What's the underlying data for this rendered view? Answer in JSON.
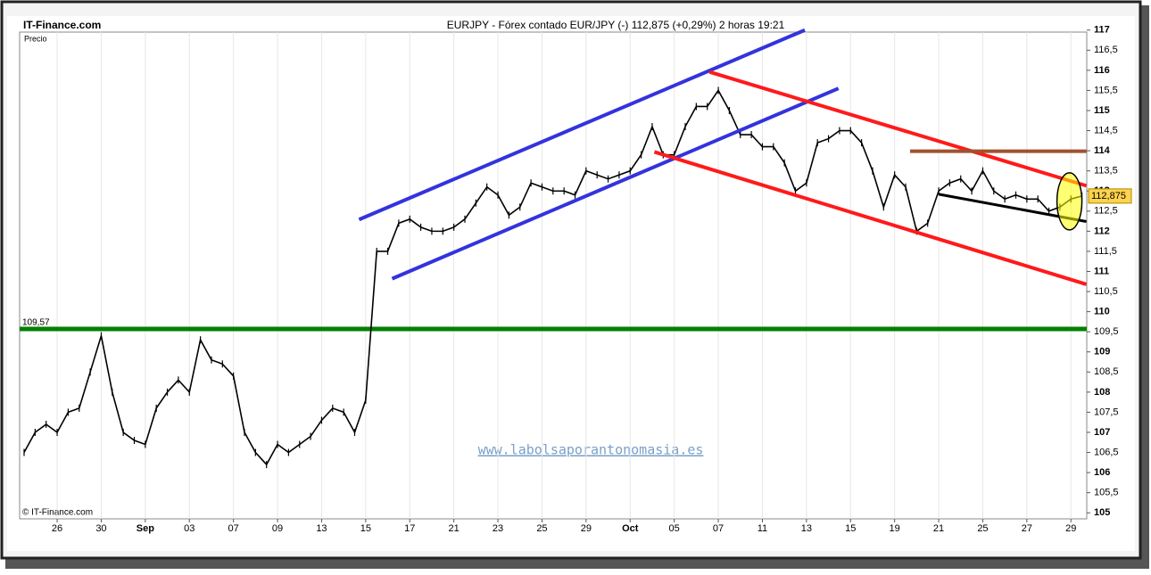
{
  "chart_data": {
    "type": "line",
    "brand": "IT-Finance.com",
    "title": "EURJPY - Fórex contado EUR/JPY (-)    112,875 (+0,29%)    2 horas   19:21",
    "ylabel": "Precio",
    "copyright": "© IT-Finance.com",
    "watermark": "www.labolsaporantonomasia.es",
    "categories": [
      null,
      null,
      null,
      "26",
      null,
      null,
      null,
      "30",
      null,
      null,
      null,
      "Sep",
      null,
      null,
      null,
      "03",
      null,
      null,
      null,
      "07",
      null,
      null,
      null,
      "09",
      null,
      null,
      null,
      "13",
      null,
      null,
      null,
      "15",
      null,
      null,
      null,
      "17",
      null,
      null,
      null,
      "21",
      null,
      null,
      null,
      "23",
      null,
      null,
      null,
      "25",
      null,
      null,
      null,
      "29",
      null,
      null,
      null,
      "Oct",
      null,
      null,
      null,
      "05",
      null,
      null,
      null,
      "07",
      null,
      null,
      null,
      "11",
      null,
      null,
      null,
      "13",
      null,
      null,
      null,
      "15",
      null,
      null,
      null,
      "19",
      null,
      null,
      null,
      "21",
      null,
      null,
      null,
      "25",
      null,
      null,
      null,
      "27",
      null,
      null,
      null,
      "29",
      null
    ],
    "series": [
      {
        "name": "EURJPY",
        "color": "#000000",
        "values": [
          106.5,
          107,
          107.2,
          107,
          107.5,
          107.6,
          108.5,
          109.4,
          108,
          107,
          106.8,
          106.7,
          107.6,
          108,
          108.3,
          108,
          109.3,
          108.8,
          108.7,
          108.4,
          107,
          106.5,
          106.2,
          106.7,
          106.5,
          106.7,
          106.9,
          107.3,
          107.6,
          107.5,
          107,
          107.8,
          111.5,
          111.5,
          112.2,
          112.3,
          112.1,
          112,
          112,
          112.1,
          112.3,
          112.7,
          113.1,
          112.9,
          112.4,
          112.6,
          113.2,
          113.1,
          113,
          113,
          112.9,
          113.5,
          113.4,
          113.3,
          113.4,
          113.5,
          113.9,
          114.6,
          113.9,
          113.9,
          114.6,
          115.1,
          115.1,
          115.5,
          115,
          114.4,
          114.4,
          114.1,
          114.1,
          113.7,
          113,
          113.2,
          114.2,
          114.3,
          114.5,
          114.5,
          114.2,
          113.5,
          112.6,
          113.4,
          113.1,
          112,
          112.2,
          113,
          113.2,
          113.3,
          113,
          113.5,
          113,
          112.8,
          112.9,
          112.8,
          112.8,
          112.5,
          112.6,
          112.8,
          112.875
        ]
      }
    ],
    "last_value_label": {
      "value": 112.875,
      "label": "112,875"
    },
    "ylim": [
      104.85,
      116.95
    ],
    "yticks": [
      105,
      {
        "value": 105.5,
        "label": "105,5"
      },
      106,
      {
        "value": 106.5,
        "label": "106,5"
      },
      107,
      {
        "value": 107.5,
        "label": "107,5"
      },
      108,
      {
        "value": 108.5,
        "label": "108,5"
      },
      109,
      {
        "value": 109.5,
        "label": "109,5"
      },
      110,
      {
        "value": 110.5,
        "label": "110,5"
      },
      111,
      {
        "value": 111.5,
        "label": "111,5"
      },
      112,
      {
        "value": 112.5,
        "label": "112,5"
      },
      113,
      {
        "value": 113.5,
        "label": "113,5"
      },
      114,
      {
        "value": 114.5,
        "label": "114,5"
      },
      115,
      {
        "value": 115.5,
        "label": "115,5"
      },
      116,
      {
        "value": 116.5,
        "label": "116,5"
      },
      117
    ],
    "support_line": {
      "value": 109.57,
      "label": "109,57",
      "color": "#008000"
    },
    "trend_lines": [
      {
        "color": "#3333dd",
        "start": [
          30.4,
          112.29
        ],
        "end": [
          70.85,
          117
        ]
      },
      {
        "color": "#3333dd",
        "start": [
          33.4,
          110.82
        ],
        "end": [
          73.9,
          115.55
        ]
      },
      {
        "color": "#ff1a1a",
        "start": [
          62.2,
          115.96
        ],
        "end": [
          96.4,
          113.13
        ]
      },
      {
        "color": "#ff1a1a",
        "start": [
          57.2,
          113.97
        ],
        "end": [
          96.4,
          110.68
        ]
      },
      {
        "color": "#000000",
        "start": [
          83,
          112.92
        ],
        "end": [
          96.4,
          112.24
        ]
      },
      {
        "color": "#a0522d",
        "start": [
          80.4,
          113.99
        ],
        "end": [
          96.4,
          113.99
        ]
      }
    ]
  }
}
